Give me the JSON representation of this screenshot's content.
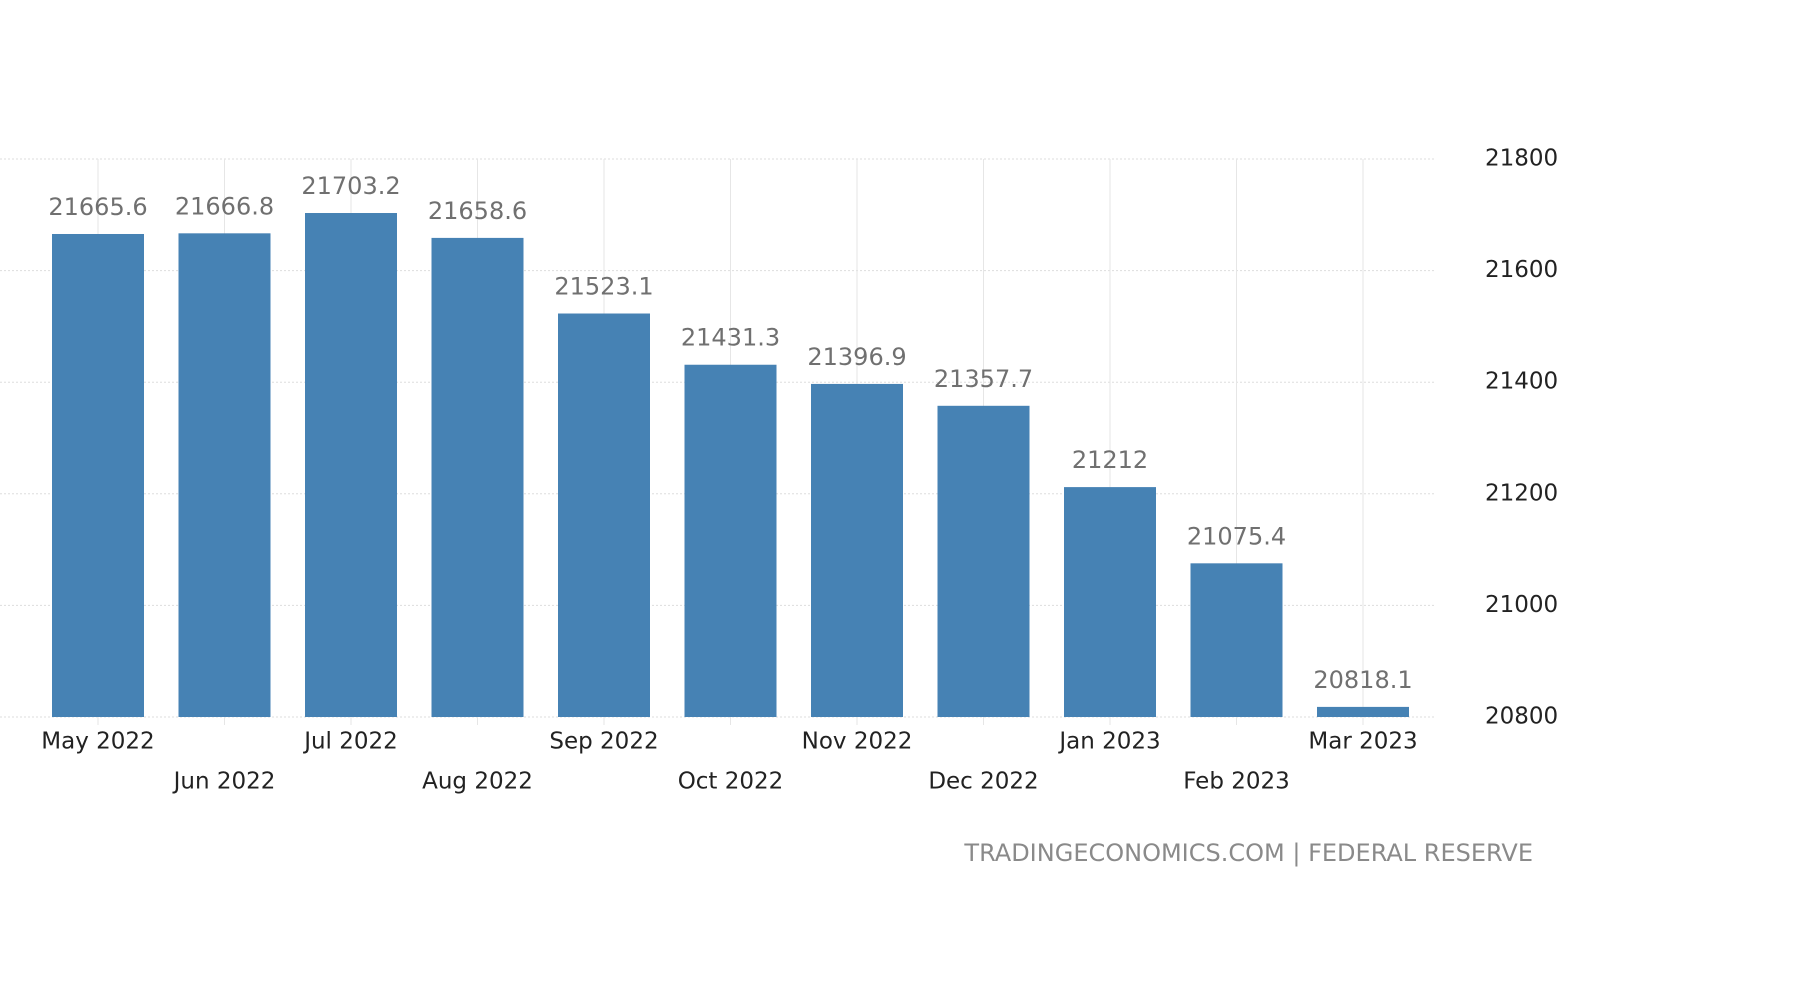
{
  "chart_data": {
    "type": "bar",
    "categories": [
      "May 2022",
      "Jun 2022",
      "Jul 2022",
      "Aug 2022",
      "Sep 2022",
      "Oct 2022",
      "Nov 2022",
      "Dec 2022",
      "Jan 2023",
      "Feb 2023",
      "Mar 2023"
    ],
    "values": [
      21665.6,
      21666.8,
      21703.2,
      21658.6,
      21523.1,
      21431.3,
      21396.9,
      21357.7,
      21212,
      21075.4,
      20818.1
    ],
    "color": "#4682b4",
    "ylim": [
      20800,
      21800
    ],
    "yticks": [
      20800,
      21000,
      21200,
      21400,
      21600,
      21800
    ],
    "grid": true,
    "source": "TRADINGECONOMICS.COM | FEDERAL RESERVE"
  }
}
